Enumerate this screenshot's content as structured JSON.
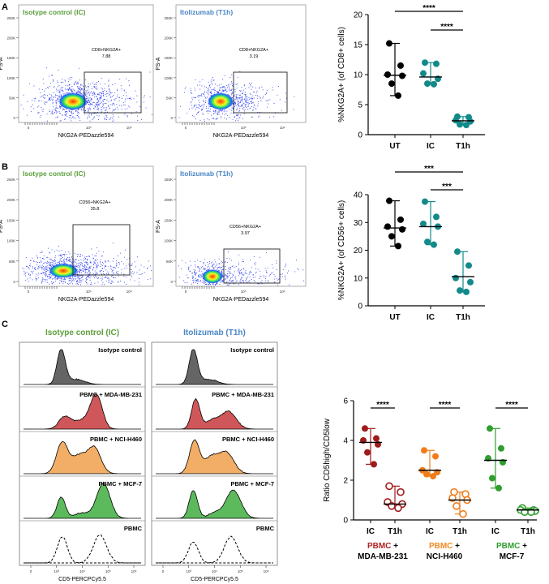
{
  "panels": {
    "A": {
      "label": "A",
      "flow_plots": [
        {
          "title": "Isotype control (IC)",
          "title_color": "#5a9e3a",
          "gate_name": "CD8+NKG2A+",
          "gate_value": "7.88",
          "ylabel": "FS-A",
          "xlabel": "NKG2A-PEDazzle594",
          "yticks": [
            "250K",
            "200K",
            "150K",
            "100K",
            "50K",
            "0"
          ],
          "xticks": [
            "0",
            "10⁵",
            "10⁶"
          ]
        },
        {
          "title": "Itolizumab (T1h)",
          "title_color": "#4a86c5",
          "gate_name": "CD8+NKG2A+",
          "gate_value": "3.19",
          "ylabel": "FS-A",
          "xlabel": "NKG2A-PEDazzle594",
          "yticks": [
            "250K",
            "200K",
            "150K",
            "100K",
            "50K",
            "0"
          ],
          "xticks": [
            "0",
            "10⁵",
            "10⁶"
          ]
        }
      ]
    },
    "B": {
      "label": "B",
      "flow_plots": [
        {
          "title": "Isotype control (IC)",
          "title_color": "#5a9e3a",
          "gate_name": "CD56+NKG2A+",
          "gate_value": "35.8",
          "ylabel": "FS-A",
          "xlabel": "NKG2A-PEDazzle594",
          "yticks": [
            "250K",
            "200K",
            "150K",
            "100K",
            "50K",
            "0"
          ],
          "xticks": [
            "0",
            "10⁵",
            "10⁶"
          ]
        },
        {
          "title": "Itolizumab (T1h)",
          "title_color": "#4a86c5",
          "gate_name": "CD56+NKG2A+",
          "gate_value": "3.97",
          "ylabel": "FS-A",
          "xlabel": "NKG2A-PEDazzle594",
          "yticks": [
            "250K",
            "200K",
            "150K",
            "100K",
            "50K",
            "0"
          ],
          "xticks": [
            "0",
            "10⁵",
            "10⁶"
          ]
        }
      ]
    },
    "C": {
      "label": "C",
      "histogram_columns": [
        {
          "title": "Isotype control (IC)",
          "title_color": "#5a9e3a",
          "xlabel": "CD5-PERCPCy5.5"
        },
        {
          "title": "Itolizumab (T1h)",
          "title_color": "#4a86c5",
          "xlabel": "CD5-PERCPCy5.5"
        }
      ],
      "histogram_rows": [
        {
          "label": "Isotype control",
          "fill": "#4a4a4a"
        },
        {
          "label": "PBMC + MDA-MB-231",
          "fill": "#c8393c"
        },
        {
          "label": "PBMC + NCI-H460",
          "fill": "#f0a04b"
        },
        {
          "label": "PBMC + MCF-7",
          "fill": "#3fae3f"
        },
        {
          "label": "PBMC",
          "fill": "none"
        }
      ],
      "histogram_xticks": [
        "0",
        "10³",
        "10⁴",
        "10⁵",
        "10⁶"
      ],
      "groups": [
        {
          "name": "PBMC",
          "rest": "+",
          "line2": "MDA-MB-231",
          "color": "#b22222"
        },
        {
          "name": "PBMC",
          "rest": "+",
          "line2": "NCI-H460",
          "color": "#f08a24"
        },
        {
          "name": "PBMC",
          "rest": "+",
          "line2": "MCF-7",
          "color": "#2e9e2e"
        }
      ]
    }
  },
  "chart_data": [
    {
      "panel": "A",
      "type": "scatter",
      "title": "",
      "ylabel": "%NKG2A+ (of CD8+ cells)",
      "categories": [
        "UT",
        "IC",
        "T1h"
      ],
      "ylim": [
        0,
        20
      ],
      "yticks": [
        0,
        5,
        10,
        15,
        20
      ],
      "series": [
        {
          "name": "UT",
          "color": "#000000",
          "filled": true,
          "values": [
            15.2,
            11.5,
            10.0,
            9.8,
            8.5,
            6.5
          ],
          "median": 9.9,
          "range": [
            6.5,
            15.2
          ]
        },
        {
          "name": "IC",
          "color": "#138a8a",
          "filled": true,
          "values": [
            12.0,
            11.8,
            10.2,
            9.3,
            8.5,
            8.4
          ],
          "median": 9.6,
          "range": [
            8.4,
            12.0
          ]
        },
        {
          "name": "T1h",
          "color": "#138a8a",
          "filled": true,
          "values": [
            3.0,
            2.9,
            2.4,
            2.2,
            1.7,
            1.6
          ],
          "median": 2.3,
          "range": [
            1.6,
            3.0
          ]
        }
      ],
      "significance": [
        {
          "from": "UT",
          "to": "T1h",
          "label": "****"
        },
        {
          "from": "IC",
          "to": "T1h",
          "label": "****"
        }
      ]
    },
    {
      "panel": "B",
      "type": "scatter",
      "title": "",
      "ylabel": "%NKG2A+ (of CD56+ cells)",
      "categories": [
        "UT",
        "IC",
        "T1h"
      ],
      "ylim": [
        0,
        40
      ],
      "yticks": [
        0,
        10,
        20,
        30,
        40
      ],
      "series": [
        {
          "name": "UT",
          "color": "#000000",
          "filled": true,
          "values": [
            37.8,
            31.0,
            28.5,
            27.5,
            25.0,
            21.5
          ],
          "median": 28.0,
          "range": [
            21.5,
            37.8
          ]
        },
        {
          "name": "IC",
          "color": "#138a8a",
          "filled": true,
          "values": [
            37.5,
            32.0,
            29.5,
            28.5,
            23.0,
            22.0
          ],
          "median": 28.5,
          "range": [
            22.0,
            37.5
          ]
        },
        {
          "name": "T1h",
          "color": "#138a8a",
          "filled": true,
          "values": [
            19.5,
            14.5,
            10.0,
            8.5,
            5.5,
            5.0
          ],
          "median": 10.5,
          "range": [
            5.0,
            19.5
          ]
        }
      ],
      "significance": [
        {
          "from": "UT",
          "to": "T1h",
          "label": "***"
        },
        {
          "from": "IC",
          "to": "T1h",
          "label": "***"
        }
      ]
    },
    {
      "panel": "C",
      "type": "scatter",
      "title": "",
      "ylabel": "Ratio CD5high/CD5low",
      "categories": [
        "IC",
        "T1h",
        "IC",
        "T1h",
        "IC",
        "T1h"
      ],
      "ylim": [
        0,
        6
      ],
      "yticks": [
        0,
        2,
        4,
        6
      ],
      "series": [
        {
          "name": "MDA-MB-231 IC",
          "color": "#a01c1c",
          "filled": true,
          "values": [
            4.6,
            4.1,
            4.0,
            3.8,
            3.4,
            2.8
          ],
          "median": 3.9,
          "range": [
            2.8,
            4.6
          ]
        },
        {
          "name": "MDA-MB-231 T1h",
          "color": "#a01c1c",
          "filled": false,
          "values": [
            1.7,
            1.4,
            0.9,
            0.8,
            0.7,
            0.6
          ],
          "median": 0.8,
          "range": [
            0.6,
            1.7
          ]
        },
        {
          "name": "NCI-H460 IC",
          "color": "#f07d1a",
          "filled": true,
          "values": [
            3.5,
            3.2,
            2.5,
            2.4,
            2.3,
            2.2
          ],
          "median": 2.5,
          "range": [
            2.2,
            3.5
          ]
        },
        {
          "name": "NCI-H460 T1h",
          "color": "#f07d1a",
          "filled": false,
          "values": [
            1.4,
            1.3,
            1.1,
            1.0,
            0.7,
            0.3
          ],
          "median": 1.0,
          "range": [
            0.3,
            1.4
          ]
        },
        {
          "name": "MCF-7 IC",
          "color": "#2e9e2e",
          "filled": true,
          "values": [
            4.6,
            3.6,
            3.1,
            2.9,
            2.1,
            1.6
          ],
          "median": 3.0,
          "range": [
            1.6,
            4.6
          ]
        },
        {
          "name": "MCF-7 T1h",
          "color": "#2e9e2e",
          "filled": false,
          "values": [
            0.6,
            0.5,
            0.5,
            0.45,
            0.4,
            0.4
          ],
          "median": 0.5,
          "range": [
            0.4,
            0.6
          ]
        }
      ],
      "significance": [
        {
          "from": "MDA-MB-231 IC",
          "to": "MDA-MB-231 T1h",
          "label": "****"
        },
        {
          "from": "NCI-H460 IC",
          "to": "NCI-H460 T1h",
          "label": "****"
        },
        {
          "from": "MCF-7 IC",
          "to": "MCF-7 T1h",
          "label": "****"
        }
      ]
    }
  ]
}
